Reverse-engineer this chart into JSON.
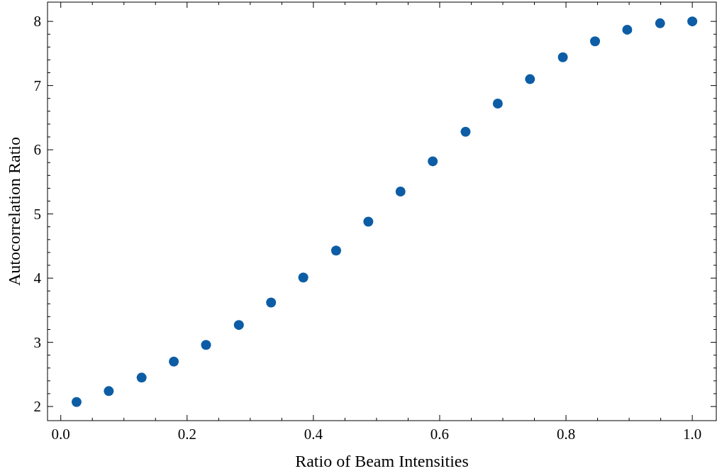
{
  "chart_data": {
    "type": "scatter",
    "xlabel": "Ratio of Beam Intensities",
    "ylabel": "Autocorrelation Ratio",
    "x": [
      0.025,
      0.076,
      0.128,
      0.179,
      0.23,
      0.282,
      0.333,
      0.384,
      0.436,
      0.487,
      0.538,
      0.589,
      0.641,
      0.692,
      0.743,
      0.795,
      0.846,
      0.897,
      0.949,
      1.0
    ],
    "series": [
      {
        "color": "#0c5da5",
        "values": [
          2.07,
          2.24,
          2.45,
          2.7,
          2.96,
          3.27,
          3.62,
          4.01,
          4.43,
          4.88,
          5.35,
          5.82,
          6.28,
          6.72,
          7.1,
          7.44,
          7.69,
          7.87,
          7.97,
          8.0
        ]
      }
    ],
    "xlim": [
      -0.021,
      1.038
    ],
    "ylim": [
      1.78,
      8.3
    ],
    "xticks": [
      {
        "value": 0,
        "label": "0.0"
      },
      0.2,
      0.4,
      0.6,
      0.8,
      {
        "value": 1,
        "label": "1.0"
      }
    ],
    "yticks": [
      2,
      3,
      4,
      5,
      6,
      7,
      8
    ],
    "marker": "circle",
    "grid": false
  }
}
